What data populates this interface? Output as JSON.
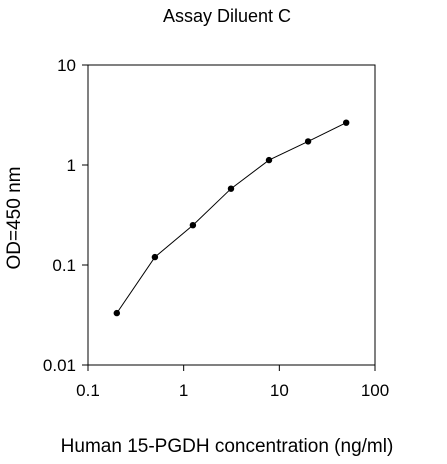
{
  "chart_data": {
    "type": "scatter",
    "title": "Assay Diluent C",
    "xlabel": "Human 15-PGDH concentration (ng/ml)",
    "ylabel": "OD=450 nm",
    "x_scale": "log",
    "y_scale": "log",
    "xlim": [
      0.1,
      100
    ],
    "ylim": [
      0.01,
      10
    ],
    "x_ticks": [
      "0.1",
      "1",
      "10",
      "100"
    ],
    "y_ticks": [
      "0.01",
      "0.1",
      "1",
      "10"
    ],
    "grid": false,
    "legend": "none",
    "series": [
      {
        "x": [
          0.2,
          0.5,
          1.25,
          3.125,
          7.8,
          20,
          50
        ],
        "y": [
          0.033,
          0.12,
          0.25,
          0.58,
          1.12,
          1.72,
          2.65
        ],
        "color": "#000000",
        "line": true,
        "marker": "circle"
      }
    ]
  }
}
